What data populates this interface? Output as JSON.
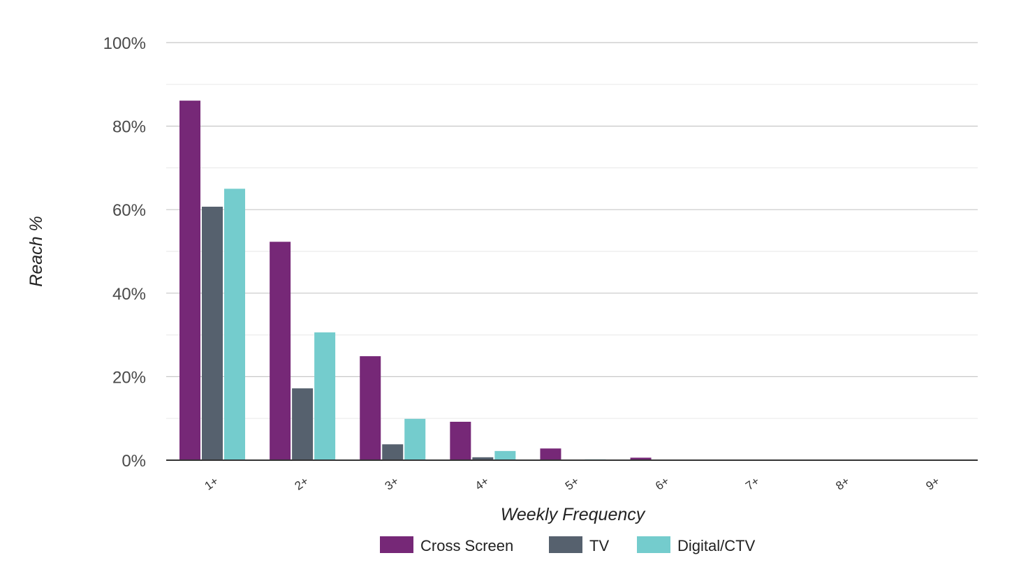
{
  "chart_data": {
    "type": "bar",
    "title": "",
    "xlabel": "Weekly Frequency",
    "ylabel": "Reach %",
    "ylim": [
      0,
      100
    ],
    "yticks": [
      "0%",
      "20%",
      "40%",
      "60%",
      "80%",
      "100%"
    ],
    "grid": true,
    "legend_position": "bottom",
    "categories": [
      "1+",
      "2+",
      "3+",
      "4+",
      "5+",
      "6+",
      "7+",
      "8+",
      "9+"
    ],
    "series": [
      {
        "name": "Cross Screen",
        "color": "#762877",
        "values": [
          86.1,
          52.3,
          24.9,
          9.2,
          2.8,
          0.6,
          0,
          0,
          0
        ]
      },
      {
        "name": "TV",
        "color": "#56616e",
        "values": [
          60.7,
          17.2,
          3.8,
          0.7,
          0.05,
          0,
          0,
          0,
          0
        ]
      },
      {
        "name": "Digital/CTV",
        "color": "#74cccd",
        "values": [
          65.0,
          30.6,
          9.9,
          2.2,
          0.2,
          0,
          0,
          0,
          0
        ]
      }
    ]
  }
}
